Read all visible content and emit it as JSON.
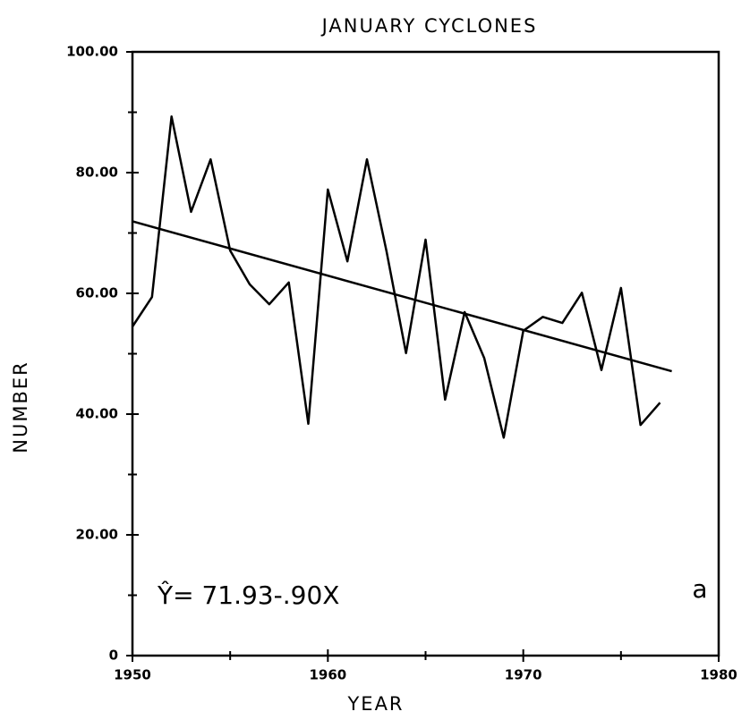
{
  "chart_data": {
    "type": "line",
    "title": "JANUARY CYCLONES",
    "x_label": "YEAR",
    "y_label": "NUMBER",
    "annotations": [
      "Ŷ= 71.93-.90X",
      "a"
    ],
    "x": [
      1950,
      1951,
      1952,
      1953,
      1954,
      1955,
      1956,
      1957,
      1958,
      1959,
      1960,
      1961,
      1962,
      1963,
      1964,
      1965,
      1966,
      1967,
      1968,
      1969,
      1970,
      1971,
      1972,
      1973,
      1974,
      1975,
      1976,
      1977
    ],
    "series": [
      {
        "color": "#000000",
        "values": [
          54.5,
          59.4,
          89.3,
          73.5,
          82.2,
          67.1,
          61.5,
          58.2,
          61.8,
          38.4,
          77.2,
          65.3,
          82.2,
          67.0,
          50.1,
          68.9,
          42.4,
          56.9,
          49.3,
          36.1,
          53.8,
          56.1,
          55.1,
          60.1,
          47.3,
          60.9,
          38.2,
          41.9
        ]
      }
    ],
    "trend": {
      "color": "#000000",
      "x": [
        1950,
        1977.6
      ],
      "values": [
        71.93,
        47.1
      ]
    },
    "xlim": [
      1950,
      1980
    ],
    "xticks": [
      1950,
      1960,
      1970,
      1980
    ],
    "xminorticks": [
      1955,
      1965,
      1975
    ],
    "ylim": [
      0,
      100
    ],
    "yticks": [
      0,
      {
        "value": 20,
        "label": "20.00"
      },
      {
        "value": 40,
        "label": "40.00"
      },
      {
        "value": 60,
        "label": "60.00"
      },
      {
        "value": 80,
        "label": "80.00"
      },
      {
        "value": 100,
        "label": "100.00"
      }
    ],
    "yminorticks": [
      10,
      30,
      50,
      70,
      90
    ],
    "grid": false
  }
}
